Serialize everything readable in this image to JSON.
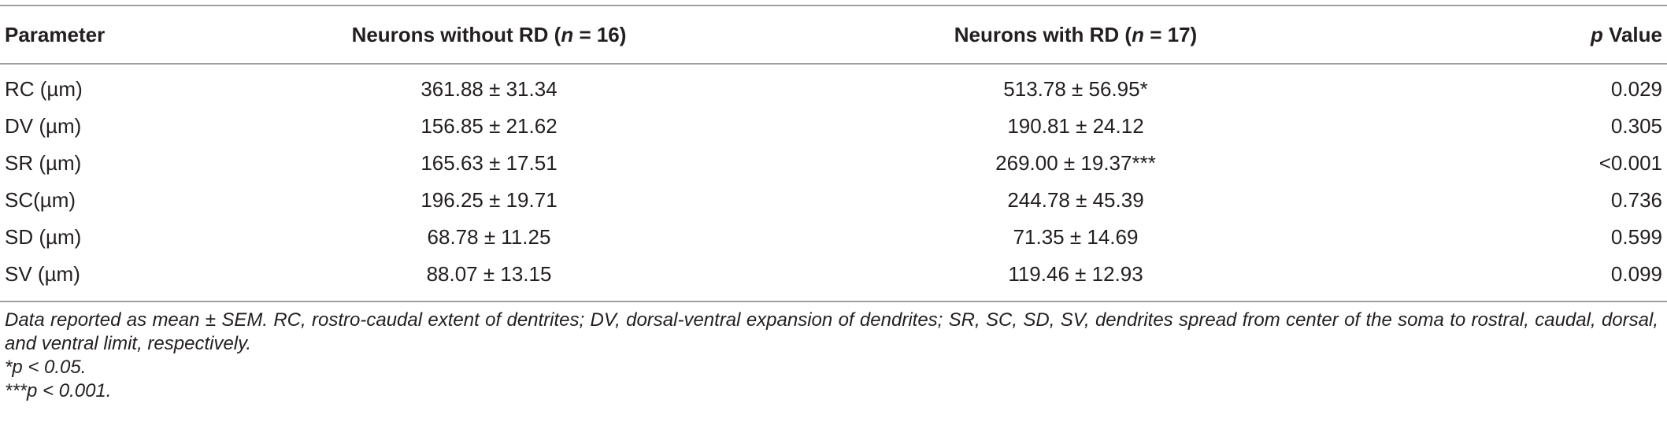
{
  "table": {
    "headers": {
      "parameter": "Parameter",
      "without_prefix": "Neurons without RD (",
      "without_n": "n",
      "without_suffix": " = 16)",
      "with_prefix": "Neurons with RD (",
      "with_n": "n",
      "with_suffix": " = 17)",
      "p_symbol": "p",
      "p_suffix": " Value"
    },
    "rows": [
      {
        "parameter": "RC (µm)",
        "without": "361.88 ± 31.34",
        "with": "513.78 ± 56.95*",
        "p": "0.029"
      },
      {
        "parameter": "DV (µm)",
        "without": "156.85 ± 21.62",
        "with": "190.81 ± 24.12",
        "p": "0.305"
      },
      {
        "parameter": "SR (µm)",
        "without": "165.63 ± 17.51",
        "with": "269.00 ± 19.37***",
        "p": "<0.001"
      },
      {
        "parameter": "SC(µm)",
        "without": "196.25 ± 19.71",
        "with": "244.78 ± 45.39",
        "p": "0.736"
      },
      {
        "parameter": "SD (µm)",
        "without": "68.78 ± 11.25",
        "with": "71.35 ± 14.69",
        "p": "0.599"
      },
      {
        "parameter": "SV (µm)",
        "without": "88.07 ± 13.15",
        "with": "119.46 ± 12.93",
        "p": "0.099"
      }
    ]
  },
  "footnotes": {
    "description": "Data reported as mean ± SEM. RC, rostro-caudal extent of dentrites; DV, dorsal-ventral expansion of dendrites; SR, SC, SD, SV, dendrites spread from center of the soma to rostral, caudal, dorsal, and ventral limit, respectively.",
    "note1": "*p < 0.05.",
    "note2": "***p < 0.001."
  }
}
